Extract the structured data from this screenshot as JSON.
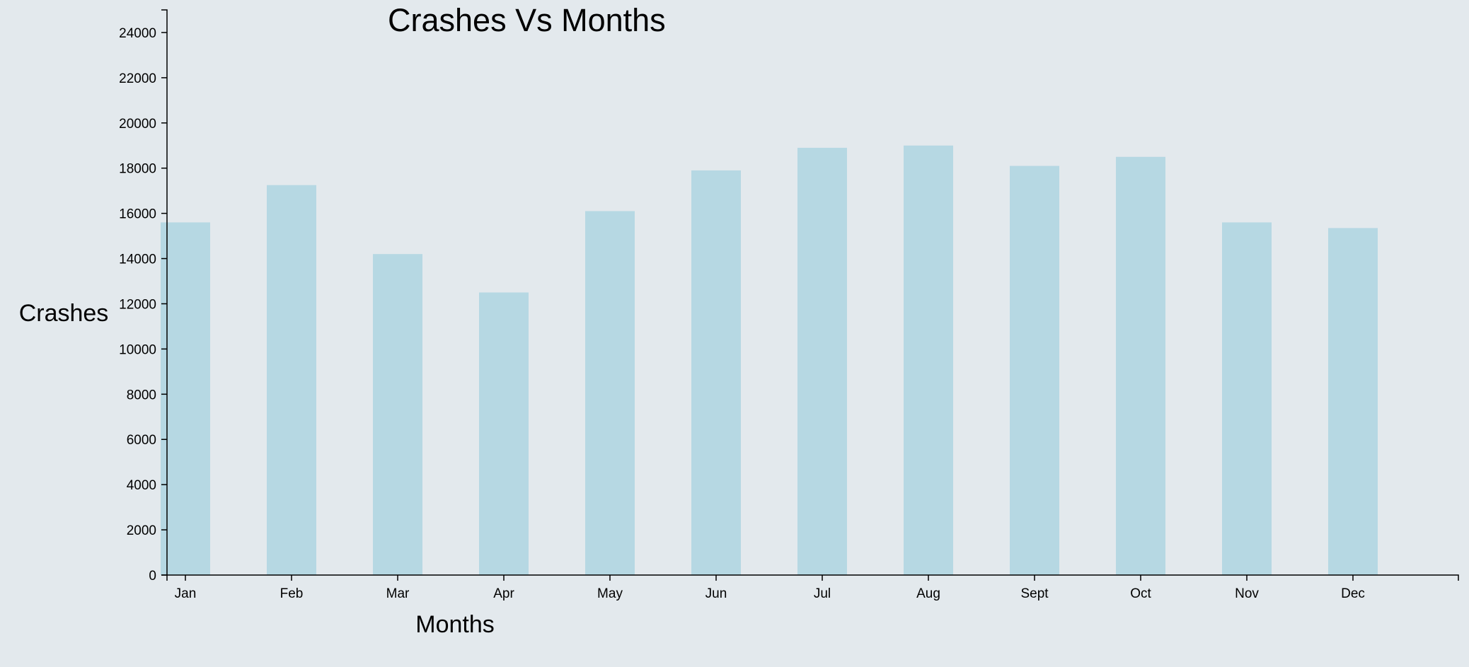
{
  "chart_data": {
    "type": "bar",
    "title": "Crashes Vs Months",
    "xlabel": "Months",
    "ylabel": "Crashes",
    "categories": [
      "Jan",
      "Feb",
      "Mar",
      "Apr",
      "May",
      "Jun",
      "Jul",
      "Aug",
      "Sept",
      "Oct",
      "Nov",
      "Dec"
    ],
    "values": [
      15600,
      17250,
      14200,
      12500,
      16100,
      17900,
      18900,
      19000,
      18100,
      18500,
      15600,
      15350
    ],
    "ylim": [
      0,
      25000
    ],
    "yticks": [
      0,
      2000,
      4000,
      6000,
      8000,
      10000,
      12000,
      14000,
      16000,
      18000,
      20000,
      22000,
      24000
    ],
    "bar_color": "#b6d8e3",
    "grid": false,
    "legend": "none"
  }
}
